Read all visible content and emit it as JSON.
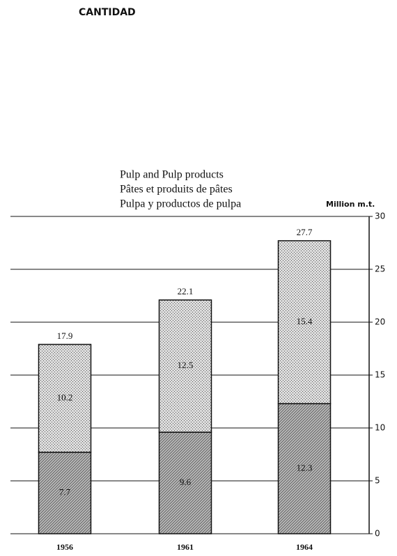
{
  "page_header": "CANTIDAD",
  "chart_data": {
    "type": "stacked_bar",
    "title": [
      "Pulp and Pulp products",
      "Pâtes et produits de pâtes",
      "Pulpa y productos de pulpa"
    ],
    "y_axis_label": "Million m.t.",
    "categories": [
      "1956",
      "1961",
      "1964"
    ],
    "series": [
      {
        "color": "#b8b8b8",
        "values": [
          7.7,
          9.6,
          12.3
        ]
      },
      {
        "color": "#dcdcdc",
        "values": [
          10.2,
          12.5,
          15.4
        ]
      }
    ],
    "totals": [
      17.9,
      22.1,
      27.7
    ],
    "ylim": [
      0,
      30
    ],
    "yticks": [
      0,
      5,
      10,
      15,
      20,
      25,
      30
    ],
    "grid": true
  }
}
